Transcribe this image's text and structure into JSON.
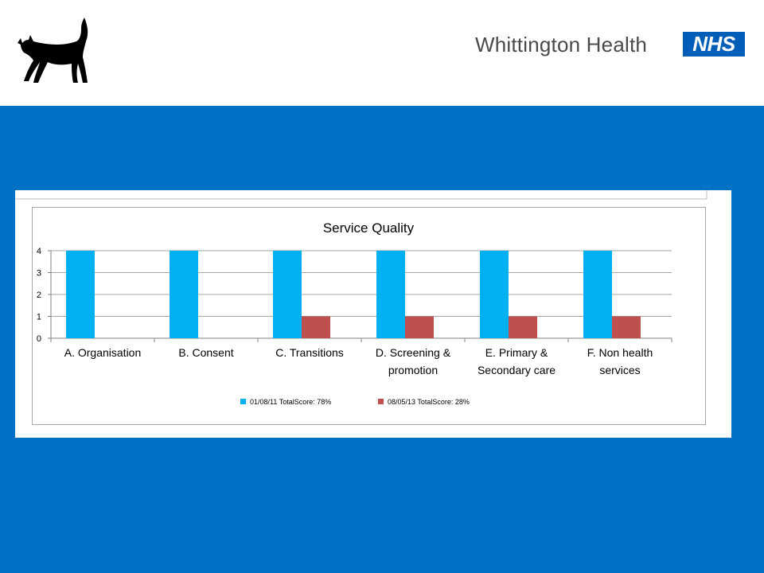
{
  "header": {
    "brand_name": "Whittington Health",
    "nhs_badge": "NHS",
    "logo_icon": "black-cat-icon"
  },
  "colors": {
    "header_bg": "#ffffff",
    "band_bg": "#0072c6",
    "nhs_blue": "#005eb8",
    "series_1": "#00b0f0",
    "series_2": "#c0504d"
  },
  "chart_data": {
    "type": "bar",
    "title": "Service Quality",
    "xlabel": "",
    "ylabel": "",
    "ylim": [
      0,
      4
    ],
    "y_ticks": [
      0,
      1,
      2,
      3,
      4
    ],
    "grid": true,
    "legend_position": "bottom",
    "categories": [
      [
        "A. Organisation"
      ],
      [
        "B. Consent"
      ],
      [
        "C. Transitions"
      ],
      [
        "D. Screening &",
        "promotion"
      ],
      [
        "E.  Primary &",
        "Secondary care"
      ],
      [
        "F.  Non health",
        "services"
      ]
    ],
    "series": [
      {
        "name": "01/08/11 TotalScore: 78%",
        "color": "#00b0f0",
        "values": [
          4,
          4,
          4,
          4,
          4,
          4
        ]
      },
      {
        "name": "08/05/13 TotalScore: 28%",
        "color": "#c0504d",
        "values": [
          0,
          0,
          1,
          1,
          1,
          1
        ]
      }
    ]
  }
}
